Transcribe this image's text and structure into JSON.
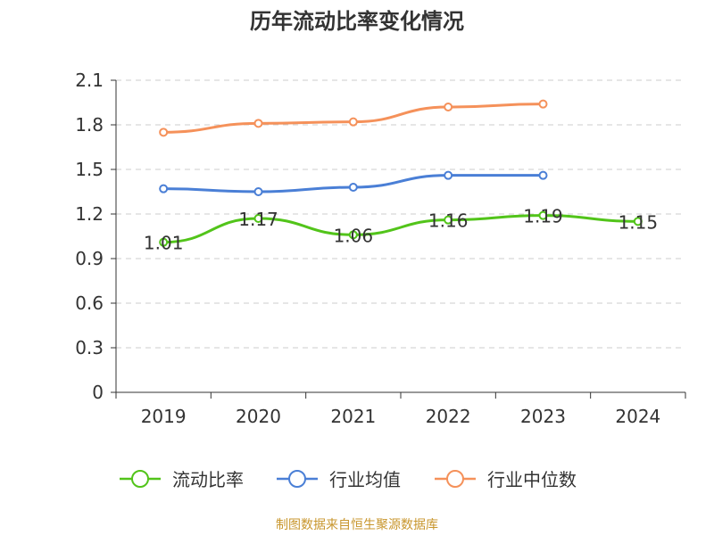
{
  "title": "历年流动比率变化情况",
  "source": "制图数据来自恒生聚源数据库",
  "chart_data": {
    "type": "line",
    "title": "历年流动比率变化情况",
    "categories": [
      "2019",
      "2020",
      "2021",
      "2022",
      "2023",
      "2024"
    ],
    "ylim": [
      0,
      2.1
    ],
    "yticks": [
      "0",
      "0.3",
      "0.6",
      "0.9",
      "1.2",
      "1.5",
      "1.8",
      "2.1"
    ],
    "grid": true,
    "legend_position": "bottom",
    "series": [
      {
        "name": "流动比率",
        "color": "#52c41a",
        "values": [
          1.01,
          1.17,
          1.06,
          1.16,
          1.19,
          1.15
        ],
        "labels": [
          "1.01",
          "1.17",
          "1.06",
          "1.16",
          "1.19",
          "1.15"
        ]
      },
      {
        "name": "行业均值",
        "color": "#4a7fd6",
        "values": [
          1.37,
          1.35,
          1.38,
          1.46,
          1.46,
          null
        ]
      },
      {
        "name": "行业中位数",
        "color": "#f5915a",
        "values": [
          1.75,
          1.81,
          1.82,
          1.92,
          1.94,
          null
        ]
      }
    ]
  }
}
